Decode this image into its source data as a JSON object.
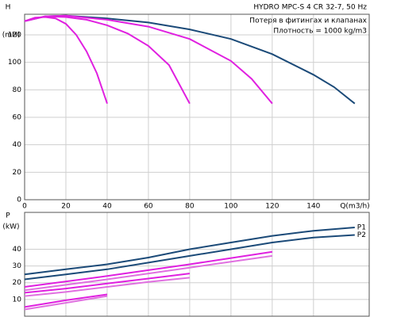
{
  "chart_data": [
    {
      "type": "line",
      "title": "HYDRO MPC-S 4 CR 32-7, 50 Hz",
      "annotations": [
        "Потеря в фитингах и клапанах",
        "Плотность = 1000 kg/m3"
      ],
      "y_label": "H",
      "y_unit": "(mH)",
      "x_label": "Q(m3/h)",
      "xlim": [
        0,
        167
      ],
      "ylim": [
        0,
        135
      ],
      "xticks": [
        0,
        20,
        40,
        60,
        80,
        100,
        120,
        140
      ],
      "yticks": [
        0,
        20,
        40,
        60,
        80,
        100,
        120
      ],
      "grid": true,
      "series": [
        {
          "color": "#1b4a78",
          "x": [
            0,
            10,
            20,
            40,
            60,
            80,
            100,
            120,
            140,
            150,
            160
          ],
          "values": [
            130,
            133.5,
            134,
            132,
            129,
            124,
            117,
            106,
            91,
            82,
            70
          ]
        },
        {
          "color": "#e020e0",
          "x": [
            0,
            5,
            10,
            15,
            20,
            25,
            30,
            35,
            40
          ],
          "values": [
            130,
            132.5,
            133,
            132,
            128,
            120,
            108,
            92,
            70
          ]
        },
        {
          "color": "#e020e0",
          "x": [
            0,
            10,
            20,
            30,
            40,
            50,
            60,
            70,
            80
          ],
          "values": [
            130,
            133.5,
            133,
            131,
            127,
            121,
            112,
            98,
            70
          ]
        },
        {
          "color": "#e020e0",
          "x": [
            0,
            10,
            20,
            40,
            60,
            80,
            100,
            110,
            120
          ],
          "values": [
            130,
            133.5,
            134,
            131,
            126,
            117,
            101,
            88,
            70
          ]
        }
      ]
    },
    {
      "type": "line",
      "y_label": "P",
      "y_unit": "(kW)",
      "xlim": [
        0,
        167
      ],
      "ylim": [
        0,
        62
      ],
      "yticks": [
        10,
        20,
        30,
        40
      ],
      "grid": true,
      "series": [
        {
          "name": "P1",
          "color": "#1b4a78",
          "x": [
            0,
            20,
            40,
            60,
            80,
            100,
            120,
            140,
            160
          ],
          "values": [
            25,
            28,
            31,
            35,
            40,
            44,
            48,
            51,
            53
          ]
        },
        {
          "name": "P2",
          "color": "#1b4a78",
          "x": [
            0,
            20,
            40,
            60,
            80,
            100,
            120,
            140,
            160
          ],
          "values": [
            22,
            25,
            28,
            32,
            36,
            40,
            44,
            47,
            48.5
          ]
        },
        {
          "color": "#e020e0",
          "x": [
            0,
            40,
            80,
            120
          ],
          "values": [
            17.5,
            24,
            31,
            38.5
          ]
        },
        {
          "color": "#e070e0",
          "x": [
            0,
            40,
            80,
            120
          ],
          "values": [
            15.5,
            22,
            29,
            36
          ]
        },
        {
          "color": "#e020e0",
          "x": [
            0,
            20,
            40,
            60,
            80
          ],
          "values": [
            14,
            16.5,
            19.5,
            22.5,
            25.5
          ]
        },
        {
          "color": "#e070e0",
          "x": [
            0,
            20,
            40,
            60,
            80
          ],
          "values": [
            12,
            14.5,
            17.5,
            20.5,
            23
          ]
        },
        {
          "color": "#e020e0",
          "x": [
            0,
            20,
            40
          ],
          "values": [
            5.5,
            9.5,
            13
          ]
        },
        {
          "color": "#e070e0",
          "x": [
            0,
            20,
            40
          ],
          "values": [
            4,
            8,
            12
          ]
        }
      ]
    }
  ]
}
